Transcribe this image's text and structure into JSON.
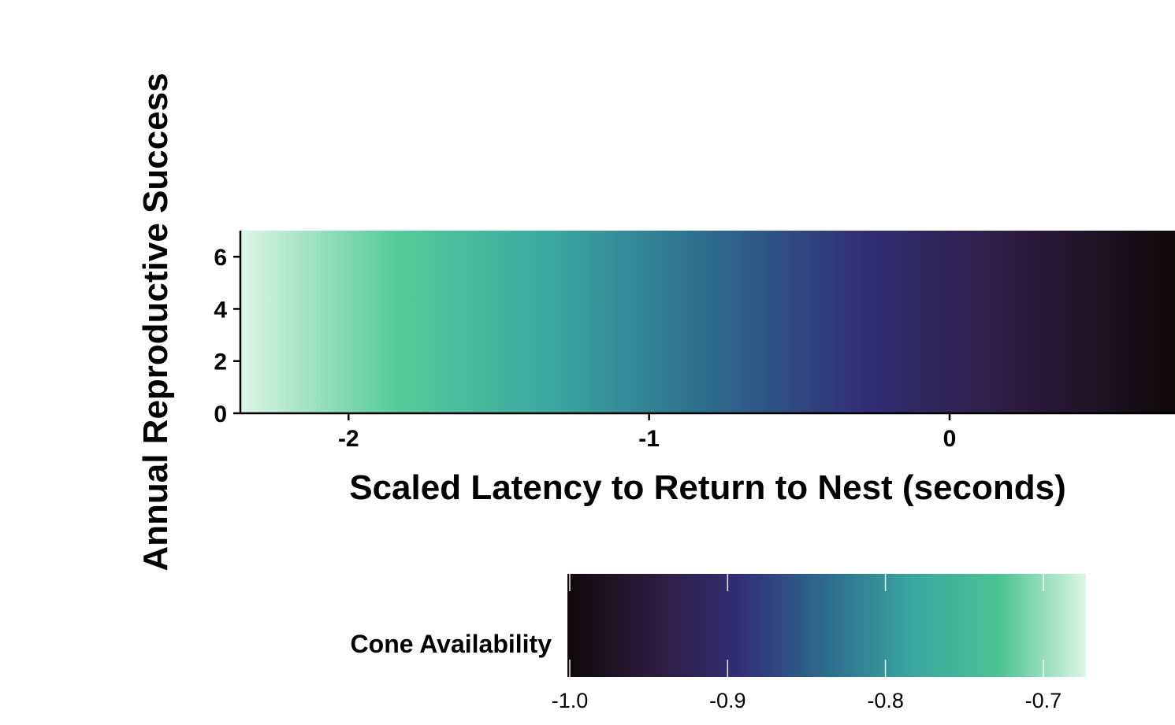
{
  "chart_data": {
    "type": "heatmap",
    "title": "",
    "xlabel": "Scaled Latency to Return to Nest (seconds)",
    "ylabel": "Annual Reproductive Success",
    "xlim": [
      -2.36,
      0.75
    ],
    "ylim": [
      0,
      7
    ],
    "x_ticks": [
      -2,
      -1,
      0
    ],
    "y_ticks": [
      0,
      2,
      4,
      6
    ],
    "gradient_direction": "left-to-right",
    "color_scale": [
      "#dcf5e4",
      "#56cb9a",
      "#3aa7a0",
      "#2d6c8d",
      "#322e76",
      "#2c1c3e",
      "#0e0909"
    ],
    "grid": false,
    "legend": {
      "title": "Cone Availability",
      "placement": "bottom",
      "ticks": [
        "-1.0",
        "-0.9",
        "-0.8",
        "-0.7"
      ],
      "tick_values": [
        -1.0,
        -0.9,
        -0.8,
        -0.7
      ],
      "range": [
        -1.0,
        -0.673
      ],
      "colors": [
        "#0e0909",
        "#2c1c3e",
        "#322e76",
        "#2d6c8d",
        "#3aa7a0",
        "#4cc394",
        "#dcf5e4"
      ]
    }
  }
}
